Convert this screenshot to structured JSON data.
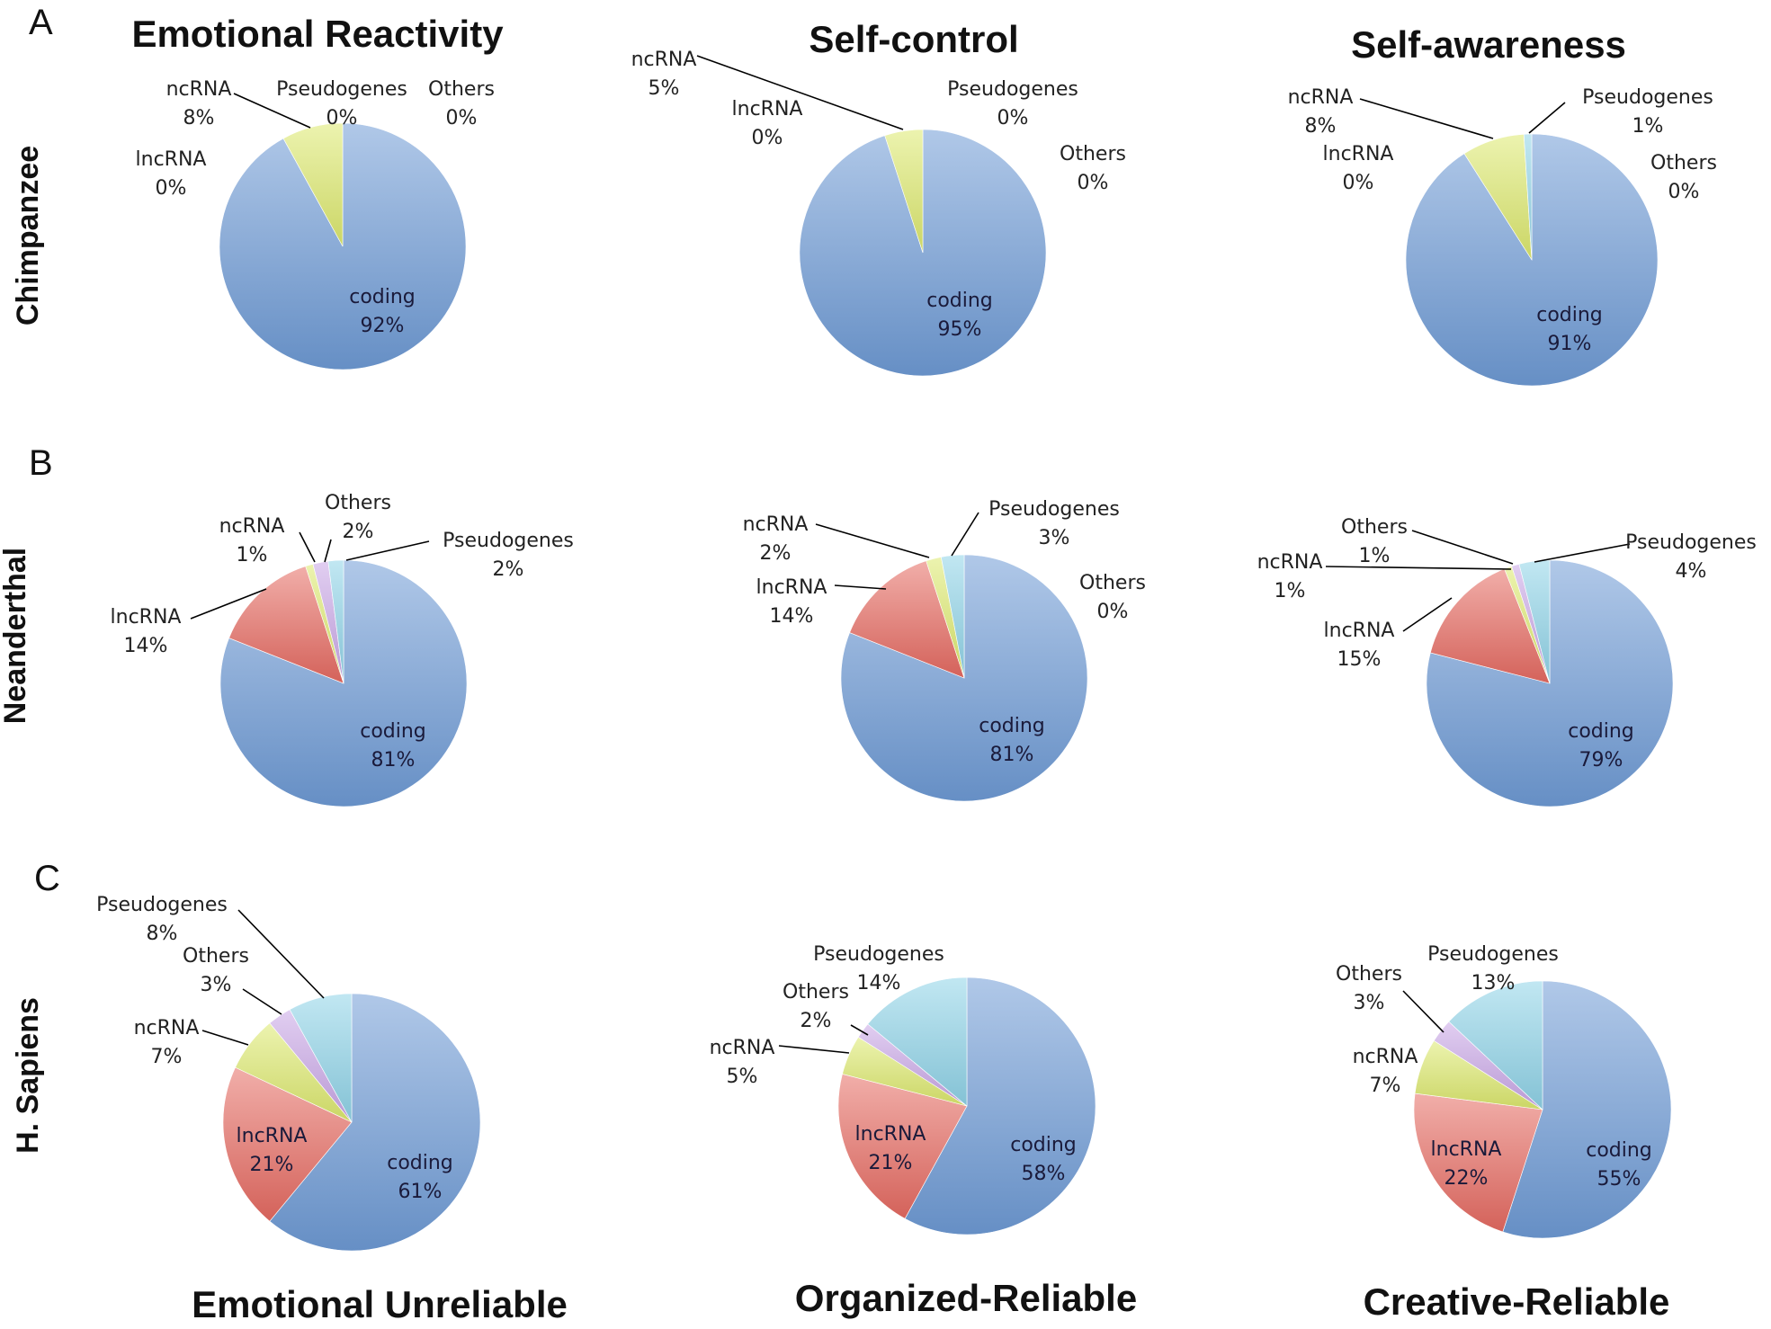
{
  "panel_letters": [
    "A",
    "B",
    "C"
  ],
  "row_labels": [
    "Chimpanzee",
    "Neanderthal",
    "H. Sapiens"
  ],
  "top_titles": [
    "Emotional Reactivity",
    "Self-control",
    "Self-awareness"
  ],
  "bottom_titles": [
    "Emotional Unreliable",
    "Organized-Reliable",
    "Creative-Reliable"
  ],
  "colors": {
    "coding": "#6f9bd6",
    "lncRNA": "#e66b62",
    "ncRNA": "#dde96e",
    "Others": "#c9a6e6",
    "Pseudogenes": "#8fd3e8"
  },
  "chart_data": [
    {
      "type": "pie",
      "row": "Chimpanzee",
      "title": "Emotional Reactivity",
      "labels": [
        "coding",
        "lncRNA",
        "ncRNA",
        "Pseudogenes",
        "Others"
      ],
      "values": [
        92,
        0,
        8,
        0,
        0
      ],
      "display": [
        "92%",
        "0%",
        "8%",
        "0%",
        "0%"
      ]
    },
    {
      "type": "pie",
      "row": "Chimpanzee",
      "title": "Self-control",
      "labels": [
        "coding",
        "lncRNA",
        "ncRNA",
        "Pseudogenes",
        "Others"
      ],
      "values": [
        95,
        0,
        5,
        0,
        0
      ],
      "display": [
        "95%",
        "0%",
        "5%",
        "0%",
        "0%"
      ]
    },
    {
      "type": "pie",
      "row": "Chimpanzee",
      "title": "Self-awareness",
      "labels": [
        "coding",
        "lncRNA",
        "ncRNA",
        "Pseudogenes",
        "Others"
      ],
      "values": [
        91,
        0,
        8,
        1,
        0
      ],
      "display": [
        "91%",
        "0%",
        "8%",
        "1%",
        "0%"
      ]
    },
    {
      "type": "pie",
      "row": "Neanderthal",
      "title": "",
      "labels": [
        "coding",
        "lncRNA",
        "ncRNA",
        "Others",
        "Pseudogenes"
      ],
      "values": [
        81,
        14,
        1,
        2,
        2
      ],
      "display": [
        "81%",
        "14%",
        "1%",
        "2%",
        "2%"
      ]
    },
    {
      "type": "pie",
      "row": "Neanderthal",
      "title": "",
      "labels": [
        "coding",
        "lncRNA",
        "ncRNA",
        "Others",
        "Pseudogenes"
      ],
      "values": [
        81,
        14,
        2,
        0,
        3
      ],
      "display": [
        "81%",
        "14%",
        "2%",
        "0%",
        "3%"
      ]
    },
    {
      "type": "pie",
      "row": "Neanderthal",
      "title": "",
      "labels": [
        "coding",
        "lncRNA",
        "ncRNA",
        "Others",
        "Pseudogenes"
      ],
      "values": [
        79,
        15,
        1,
        1,
        4
      ],
      "display": [
        "79%",
        "15%",
        "1%",
        "1%",
        "4%"
      ]
    },
    {
      "type": "pie",
      "row": "H. Sapiens",
      "title": "Emotional Unreliable",
      "labels": [
        "coding",
        "lncRNA",
        "ncRNA",
        "Others",
        "Pseudogenes"
      ],
      "values": [
        61,
        21,
        7,
        3,
        8
      ],
      "display": [
        "61%",
        "21%",
        "7%",
        "3%",
        "8%"
      ]
    },
    {
      "type": "pie",
      "row": "H. Sapiens",
      "title": "Organized-Reliable",
      "labels": [
        "coding",
        "lncRNA",
        "ncRNA",
        "Others",
        "Pseudogenes"
      ],
      "values": [
        58,
        21,
        5,
        2,
        14
      ],
      "display": [
        "58%",
        "21%",
        "5%",
        "2%",
        "14%"
      ]
    },
    {
      "type": "pie",
      "row": "H. Sapiens",
      "title": "Creative-Reliable",
      "labels": [
        "coding",
        "lncRNA",
        "ncRNA",
        "Others",
        "Pseudogenes"
      ],
      "values": [
        55,
        22,
        7,
        3,
        13
      ],
      "display": [
        "55%",
        "22%",
        "7%",
        "3%",
        "13%"
      ]
    }
  ]
}
